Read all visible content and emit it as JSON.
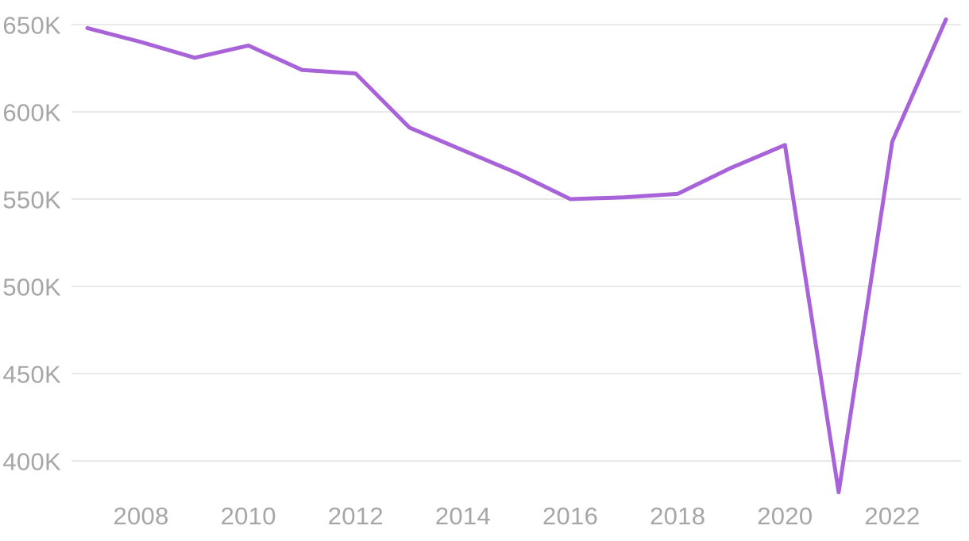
{
  "chart": {
    "background_color": "#ffffff",
    "line_color": "#a963d8",
    "grid_color": "#e2e2e2",
    "label_color": "#a6a6a6"
  },
  "chart_data": {
    "type": "line",
    "title": "",
    "xlabel": "",
    "ylabel": "",
    "x": [
      2007,
      2008,
      2009,
      2010,
      2011,
      2012,
      2013,
      2014,
      2015,
      2016,
      2017,
      2018,
      2019,
      2020,
      2021,
      2022,
      2023
    ],
    "series": [
      {
        "name": "series-1",
        "values": [
          648000,
          640000,
          631000,
          638000,
          624000,
          622000,
          591000,
          578000,
          565000,
          550000,
          551000,
          553000,
          568000,
          581000,
          382000,
          583000,
          653000
        ]
      }
    ],
    "y_ticks": [
      {
        "value": 650000,
        "label": "650K"
      },
      {
        "value": 600000,
        "label": "600K"
      },
      {
        "value": 550000,
        "label": "550K"
      },
      {
        "value": 500000,
        "label": "500K"
      },
      {
        "value": 450000,
        "label": "450K"
      },
      {
        "value": 400000,
        "label": "400K"
      }
    ],
    "x_ticks": [
      {
        "value": 2008,
        "label": "2008"
      },
      {
        "value": 2010,
        "label": "2010"
      },
      {
        "value": 2012,
        "label": "2012"
      },
      {
        "value": 2014,
        "label": "2014"
      },
      {
        "value": 2016,
        "label": "2016"
      },
      {
        "value": 2018,
        "label": "2018"
      },
      {
        "value": 2020,
        "label": "2020"
      },
      {
        "value": 2022,
        "label": "2022"
      }
    ],
    "xlim": [
      2007,
      2023
    ],
    "ylim": [
      375000,
      655000
    ],
    "grid": "horizontal",
    "legend": "none"
  }
}
